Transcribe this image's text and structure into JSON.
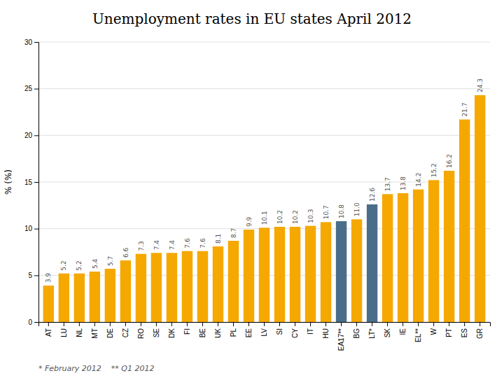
{
  "chart_data": {
    "type": "bar",
    "title": "Unemployment rates in EU states April 2012",
    "y_label": "% (%)",
    "categories": [
      "AT",
      "LU",
      "NL",
      "MT",
      "DE",
      "CZ",
      "RO",
      "SE",
      "DK",
      "FI",
      "BE",
      "UK",
      "PL",
      "EE",
      "LV",
      "SI",
      "CY",
      "IT",
      "HU",
      "EA17**",
      "BG",
      "LT*",
      "SK",
      "IE",
      "EL**",
      "W",
      "PT",
      "ES",
      "GR"
    ],
    "values": [
      3.9,
      5.2,
      5.2,
      5.4,
      5.7,
      6.6,
      7.3,
      7.4,
      7.4,
      7.6,
      7.6,
      8.1,
      8.7,
      9.9,
      10.1,
      10.2,
      10.2,
      10.3,
      10.7,
      10.8,
      11.0,
      12.6,
      13.7,
      13.8,
      14.2,
      15.2,
      16.2,
      21.7,
      24.3
    ],
    "value_labels": [
      "3.9",
      "5.2",
      "5.2",
      "5.4",
      "5.7",
      "6.6",
      "7.3",
      "7.4",
      "7.4",
      "7.6",
      "7.6",
      "8.1",
      "8.7",
      "9.9",
      "10.1",
      "10.2",
      "10.2",
      "10.3",
      "10.7",
      "10.8",
      "11.0",
      "12.6",
      "13.7",
      "13.8",
      "14.2",
      "15.2",
      "16.2",
      "21.7",
      "24.3"
    ],
    "colors": [
      "#F5A800",
      "#F5A800",
      "#F5A800",
      "#F5A800",
      "#F5A800",
      "#F5A800",
      "#F5A800",
      "#F5A800",
      "#F5A800",
      "#F5A800",
      "#F5A800",
      "#F5A800",
      "#F5A800",
      "#F5A800",
      "#F5A800",
      "#F5A800",
      "#F5A800",
      "#F5A800",
      "#F5A800",
      "#4A6E8A",
      "#F5A800",
      "#4A6E8A",
      "#F5A800",
      "#F5A800",
      "#F5A800",
      "#F5A800",
      "#F5A800",
      "#F5A800",
      "#F5A800"
    ],
    "ylim": [
      0,
      30
    ],
    "yticks": [
      0,
      5,
      10,
      15,
      20,
      25,
      30
    ],
    "grid": true,
    "data_labels": true,
    "annotations": [
      "* February 2012    ** Q1 2012"
    ]
  }
}
